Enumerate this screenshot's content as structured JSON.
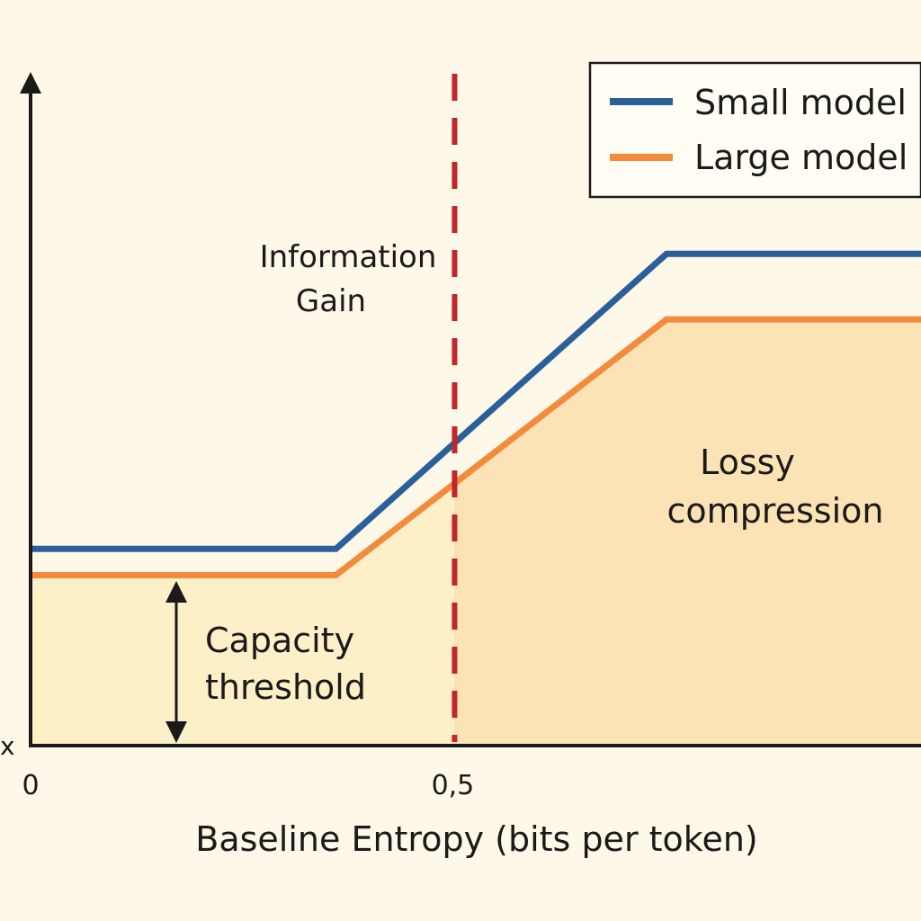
{
  "chart_data": {
    "type": "line",
    "title": "",
    "xlabel": "Baseline Entropy (bits per token)",
    "ylabel": "",
    "y_origin_label": "x",
    "xlim": [
      0,
      1.05
    ],
    "ylim": [
      0,
      1
    ],
    "x_ticks": [
      {
        "value": 0,
        "label": "0"
      },
      {
        "value": 0.5,
        "label": "0,5"
      }
    ],
    "grid": false,
    "legend": {
      "position": "top-right",
      "entries": [
        "Small model",
        "Large model"
      ]
    },
    "series": [
      {
        "name": "Small model",
        "color": "#2b5f9a",
        "x": [
          0,
          0.36,
          0.75,
          1.05
        ],
        "y": [
          0.3,
          0.3,
          0.75,
          0.75
        ]
      },
      {
        "name": "Large model",
        "color": "#f28c3c",
        "x": [
          0,
          0.36,
          0.75,
          1.05
        ],
        "y": [
          0.26,
          0.26,
          0.65,
          0.65
        ]
      }
    ],
    "threshold": {
      "x": 0.5,
      "color": "#c0262b"
    },
    "annotations": {
      "information_gain": [
        "Information",
        "Gain"
      ],
      "lossy_compression": [
        "Lossy",
        "compression"
      ],
      "capacity_threshold": [
        "Capacity",
        "threshold"
      ]
    },
    "colors": {
      "background": "#fdf8e8",
      "fill_left": "#fdefc8",
      "fill_right": "#fce3b6",
      "axis": "#1a1a1a"
    }
  }
}
